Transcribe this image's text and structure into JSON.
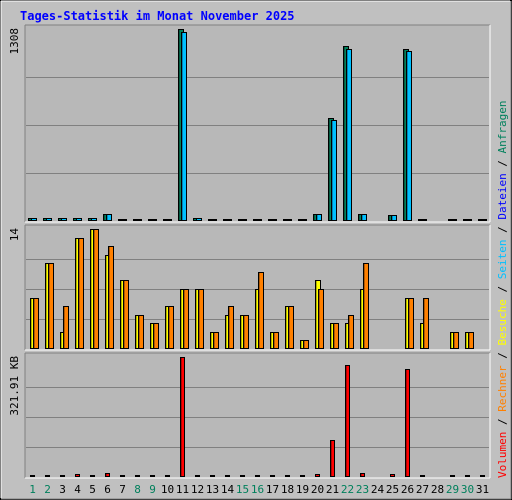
{
  "chart_data": {
    "type": "bar",
    "title": "Tages-Statistik im Monat November 2025",
    "categories": [
      "1",
      "2",
      "3",
      "4",
      "5",
      "6",
      "7",
      "8",
      "9",
      "10",
      "11",
      "12",
      "13",
      "14",
      "15",
      "16",
      "17",
      "18",
      "19",
      "20",
      "21",
      "22",
      "23",
      "24",
      "25",
      "26",
      "27",
      "28",
      "29",
      "30",
      "31"
    ],
    "weekend_days": [
      "1",
      "2",
      "8",
      "9",
      "15",
      "16",
      "22",
      "23",
      "29",
      "30"
    ],
    "legend": {
      "separator": " / ",
      "entries": [
        {
          "label": "Anfragen",
          "color": "#00805c"
        },
        {
          "label": "Dateien",
          "color": "#0000ff"
        },
        {
          "label": "Seiten",
          "color": "#00c0ff"
        },
        {
          "label": "Besuche",
          "color": "#ffff00"
        },
        {
          "label": "Rechner",
          "color": "#ff8000"
        },
        {
          "label": "Volumen",
          "color": "#ff0000"
        }
      ]
    },
    "panels": [
      {
        "id": "hits",
        "ylabel": "1308",
        "ymax": 1308,
        "series": [
          {
            "name": "Anfragen",
            "color": "#00805c",
            "values": [
              20,
              20,
              18,
              22,
              22,
              50,
              15,
              15,
              10,
              15,
              1308,
              18,
              10,
              10,
              10,
              15,
              10,
              15,
              10,
              50,
              700,
              1190,
              50,
              0,
              38,
              1170,
              15,
              0,
              10,
              10,
              10
            ]
          },
          {
            "name": "Dateien",
            "color": "#00c0ff",
            "values": [
              20,
              20,
              18,
              22,
              22,
              50,
              15,
              15,
              10,
              15,
              1290,
              18,
              10,
              10,
              10,
              15,
              10,
              15,
              10,
              50,
              690,
              1170,
              50,
              0,
              38,
              1160,
              8,
              0,
              10,
              10,
              10
            ]
          }
        ]
      },
      {
        "id": "visits",
        "ylabel": "14",
        "ymax": 14,
        "series": [
          {
            "name": "Seiten",
            "color": "#00c0ff",
            "values": [
              0,
              0,
              0,
              0,
              0,
              0,
              0,
              0,
              0,
              0,
              0,
              0,
              0,
              0,
              0,
              0,
              0,
              0,
              0,
              0,
              0,
              0,
              0,
              0,
              0,
              0,
              0,
              0,
              0,
              0,
              0
            ]
          },
          {
            "name": "Besuche",
            "color": "#ffff00",
            "values": [
              6,
              10,
              2,
              13,
              14,
              11,
              8,
              4,
              3,
              5,
              7,
              7,
              2,
              4,
              4,
              7,
              2,
              5,
              1,
              8,
              3,
              3,
              7,
              0,
              0,
              6,
              3,
              0,
              2,
              2,
              0
            ]
          },
          {
            "name": "Rechner",
            "color": "#ff8000",
            "values": [
              6,
              10,
              5,
              13,
              14,
              12,
              8,
              4,
              3,
              5,
              7,
              7,
              2,
              5,
              4,
              9,
              2,
              5,
              1,
              7,
              3,
              4,
              10,
              0,
              0,
              6,
              6,
              0,
              2,
              2,
              0
            ]
          }
        ]
      },
      {
        "id": "volume",
        "ylabel": "321.91 KB",
        "ymax": 321.91,
        "series": [
          {
            "name": "Volumen",
            "color": "#ff0000",
            "values": [
              3,
              3,
              1,
              7,
              5,
              10,
              3,
              1,
              1,
              1,
              321.91,
              5,
              3,
              3,
              3,
              3,
              2,
              2,
              2,
              7,
              100,
              300,
              10,
              0,
              8,
              290,
              3,
              0,
              1,
              1,
              1
            ]
          }
        ]
      }
    ]
  }
}
